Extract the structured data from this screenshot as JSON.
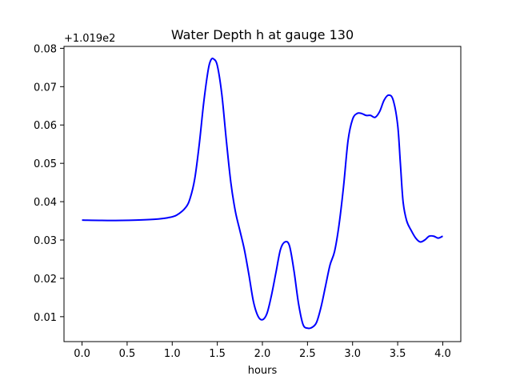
{
  "chart_data": {
    "type": "line",
    "title": "Water Depth h at gauge 130",
    "xlabel": "hours",
    "ylabel": "",
    "y_offset_label": "+1.019e2",
    "xlim": [
      -0.2,
      4.2
    ],
    "ylim": [
      0.0035,
      0.0805
    ],
    "x_ticks": [
      0.0,
      0.5,
      1.0,
      1.5,
      2.0,
      2.5,
      3.0,
      3.5,
      4.0
    ],
    "x_tick_labels": [
      "0.0",
      "0.5",
      "1.0",
      "1.5",
      "2.0",
      "2.5",
      "3.0",
      "3.5",
      "4.0"
    ],
    "y_ticks": [
      0.01,
      0.02,
      0.03,
      0.04,
      0.05,
      0.06,
      0.07,
      0.08
    ],
    "y_tick_labels": [
      "0.01",
      "0.02",
      "0.03",
      "0.04",
      "0.05",
      "0.06",
      "0.07",
      "0.08"
    ],
    "grid": false,
    "line_color": "#0000ff",
    "series": [
      {
        "x": [
          0.0,
          0.3,
          0.6,
          0.8,
          0.95,
          1.05,
          1.15,
          1.2,
          1.25,
          1.3,
          1.35,
          1.4,
          1.43,
          1.46,
          1.5,
          1.55,
          1.6,
          1.65,
          1.7,
          1.75,
          1.8,
          1.85,
          1.9,
          1.95,
          2.0,
          2.05,
          2.1,
          2.15,
          2.2,
          2.25,
          2.3,
          2.35,
          2.4,
          2.45,
          2.5,
          2.55,
          2.6,
          2.65,
          2.7,
          2.75,
          2.8,
          2.85,
          2.9,
          2.95,
          3.0,
          3.05,
          3.1,
          3.15,
          3.2,
          3.25,
          3.3,
          3.35,
          3.4,
          3.45,
          3.5,
          3.53,
          3.56,
          3.6,
          3.65,
          3.7,
          3.75,
          3.8,
          3.85,
          3.9,
          3.95,
          4.0
        ],
        "y": [
          0.0352,
          0.0351,
          0.0352,
          0.0354,
          0.0358,
          0.0365,
          0.0385,
          0.041,
          0.046,
          0.055,
          0.066,
          0.0745,
          0.077,
          0.0772,
          0.0755,
          0.068,
          0.056,
          0.045,
          0.0375,
          0.0325,
          0.0275,
          0.021,
          0.014,
          0.0102,
          0.0092,
          0.0108,
          0.0155,
          0.0215,
          0.0275,
          0.0295,
          0.0285,
          0.022,
          0.0135,
          0.008,
          0.007,
          0.0072,
          0.0085,
          0.0125,
          0.018,
          0.0235,
          0.027,
          0.034,
          0.044,
          0.056,
          0.0615,
          0.063,
          0.063,
          0.0625,
          0.0625,
          0.062,
          0.0635,
          0.0665,
          0.0678,
          0.0665,
          0.06,
          0.05,
          0.04,
          0.035,
          0.0325,
          0.0305,
          0.0295,
          0.03,
          0.031,
          0.031,
          0.0305,
          0.031
        ]
      }
    ]
  }
}
